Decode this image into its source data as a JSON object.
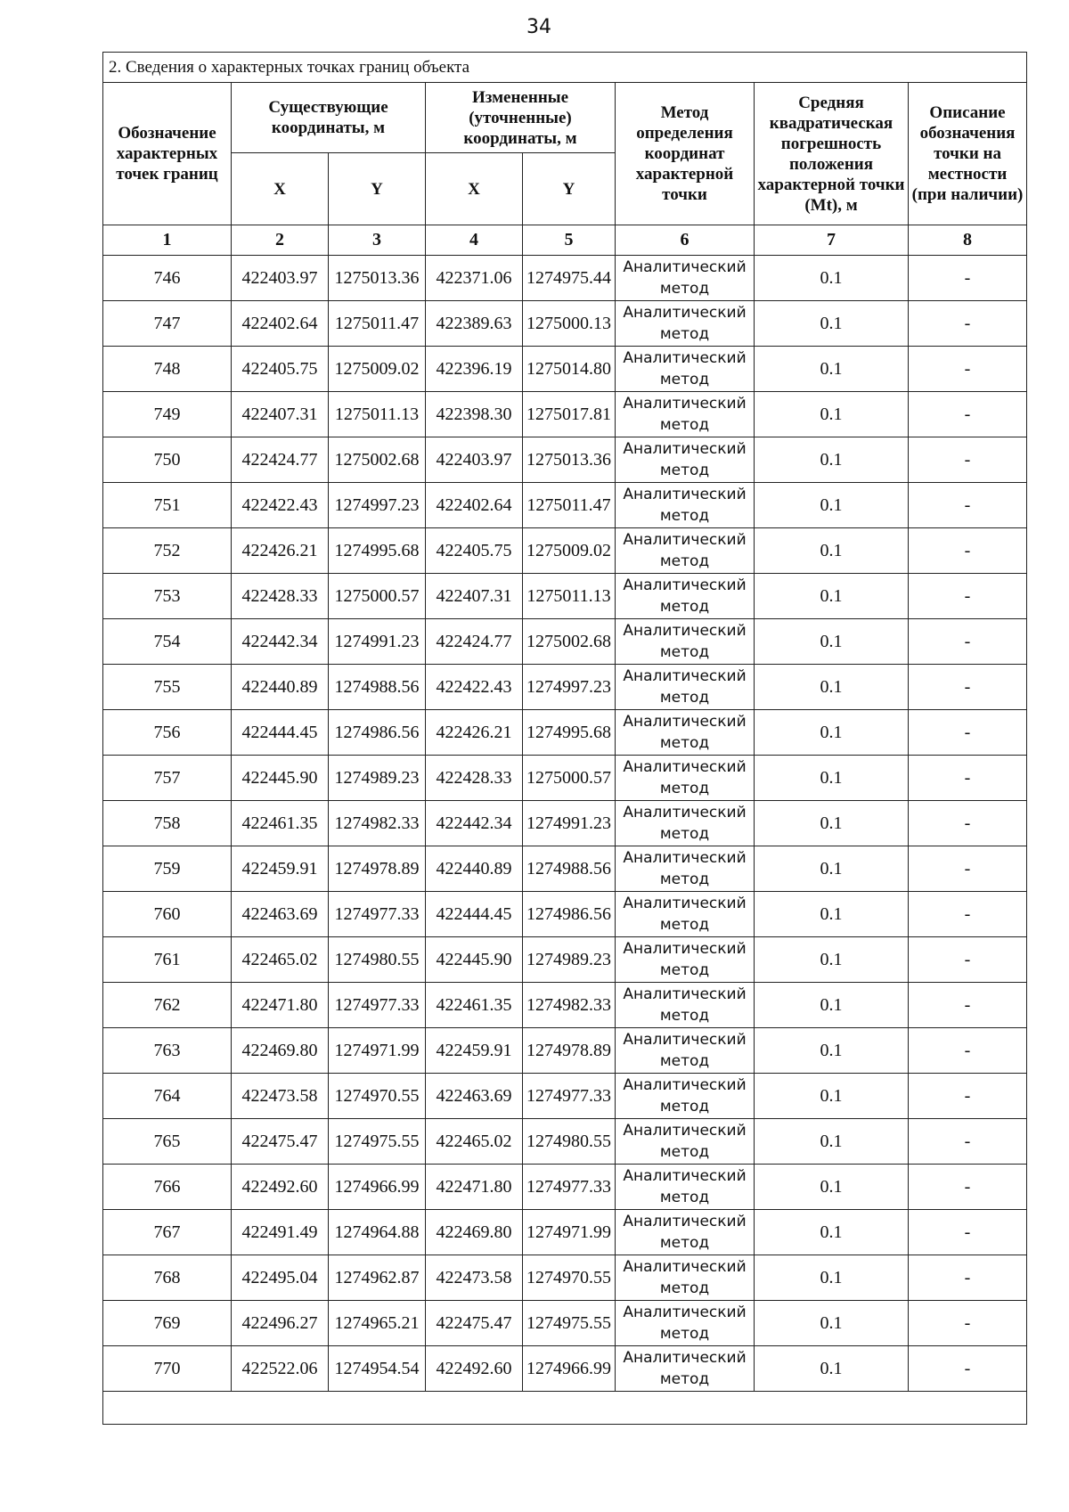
{
  "page_number": "34",
  "section_title": "2. Сведения о характерных точках границ объекта",
  "headers": {
    "point_designation": "Обозначение характерных точек границ",
    "existing_coords": "Существующие координаты, м",
    "changed_coords": "Измененные (уточненные) координаты, м",
    "x": "X",
    "y": "Y",
    "method": "Метод определения координат характерной точки",
    "error": "Средняя квадратическая погрешность положения характерной точки (Mt), м",
    "description": "Описание обозначения точки на местности (при наличии)",
    "col_numbers": [
      "1",
      "2",
      "3",
      "4",
      "5",
      "6",
      "7",
      "8"
    ]
  },
  "rows": [
    [
      "746",
      "422403.97",
      "1275013.36",
      "422371.06",
      "1274975.44",
      "Аналитический метод",
      "0.1",
      "-"
    ],
    [
      "747",
      "422402.64",
      "1275011.47",
      "422389.63",
      "1275000.13",
      "Аналитический метод",
      "0.1",
      "-"
    ],
    [
      "748",
      "422405.75",
      "1275009.02",
      "422396.19",
      "1275014.80",
      "Аналитический метод",
      "0.1",
      "-"
    ],
    [
      "749",
      "422407.31",
      "1275011.13",
      "422398.30",
      "1275017.81",
      "Аналитический метод",
      "0.1",
      "-"
    ],
    [
      "750",
      "422424.77",
      "1275002.68",
      "422403.97",
      "1275013.36",
      "Аналитический метод",
      "0.1",
      "-"
    ],
    [
      "751",
      "422422.43",
      "1274997.23",
      "422402.64",
      "1275011.47",
      "Аналитический метод",
      "0.1",
      "-"
    ],
    [
      "752",
      "422426.21",
      "1274995.68",
      "422405.75",
      "1275009.02",
      "Аналитический метод",
      "0.1",
      "-"
    ],
    [
      "753",
      "422428.33",
      "1275000.57",
      "422407.31",
      "1275011.13",
      "Аналитический метод",
      "0.1",
      "-"
    ],
    [
      "754",
      "422442.34",
      "1274991.23",
      "422424.77",
      "1275002.68",
      "Аналитический метод",
      "0.1",
      "-"
    ],
    [
      "755",
      "422440.89",
      "1274988.56",
      "422422.43",
      "1274997.23",
      "Аналитический метод",
      "0.1",
      "-"
    ],
    [
      "756",
      "422444.45",
      "1274986.56",
      "422426.21",
      "1274995.68",
      "Аналитический метод",
      "0.1",
      "-"
    ],
    [
      "757",
      "422445.90",
      "1274989.23",
      "422428.33",
      "1275000.57",
      "Аналитический метод",
      "0.1",
      "-"
    ],
    [
      "758",
      "422461.35",
      "1274982.33",
      "422442.34",
      "1274991.23",
      "Аналитический метод",
      "0.1",
      "-"
    ],
    [
      "759",
      "422459.91",
      "1274978.89",
      "422440.89",
      "1274988.56",
      "Аналитический метод",
      "0.1",
      "-"
    ],
    [
      "760",
      "422463.69",
      "1274977.33",
      "422444.45",
      "1274986.56",
      "Аналитический метод",
      "0.1",
      "-"
    ],
    [
      "761",
      "422465.02",
      "1274980.55",
      "422445.90",
      "1274989.23",
      "Аналитический метод",
      "0.1",
      "-"
    ],
    [
      "762",
      "422471.80",
      "1274977.33",
      "422461.35",
      "1274982.33",
      "Аналитический метод",
      "0.1",
      "-"
    ],
    [
      "763",
      "422469.80",
      "1274971.99",
      "422459.91",
      "1274978.89",
      "Аналитический метод",
      "0.1",
      "-"
    ],
    [
      "764",
      "422473.58",
      "1274970.55",
      "422463.69",
      "1274977.33",
      "Аналитический метод",
      "0.1",
      "-"
    ],
    [
      "765",
      "422475.47",
      "1274975.55",
      "422465.02",
      "1274980.55",
      "Аналитический метод",
      "0.1",
      "-"
    ],
    [
      "766",
      "422492.60",
      "1274966.99",
      "422471.80",
      "1274977.33",
      "Аналитический метод",
      "0.1",
      "-"
    ],
    [
      "767",
      "422491.49",
      "1274964.88",
      "422469.80",
      "1274971.99",
      "Аналитический метод",
      "0.1",
      "-"
    ],
    [
      "768",
      "422495.04",
      "1274962.87",
      "422473.58",
      "1274970.55",
      "Аналитический метод",
      "0.1",
      "-"
    ],
    [
      "769",
      "422496.27",
      "1274965.21",
      "422475.47",
      "1274975.55",
      "Аналитический метод",
      "0.1",
      "-"
    ],
    [
      "770",
      "422522.06",
      "1274954.54",
      "422492.60",
      "1274966.99",
      "Аналитический метод",
      "0.1",
      "-"
    ]
  ]
}
